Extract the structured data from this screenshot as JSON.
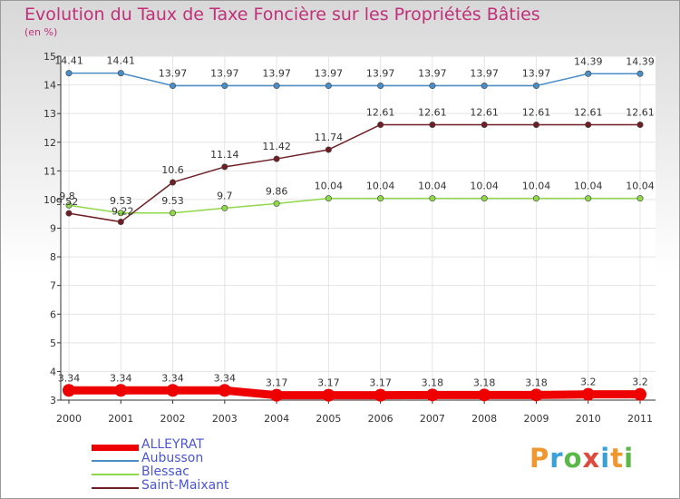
{
  "chart_data": {
    "type": "line",
    "title": "Evolution du Taux de Taxe Foncière sur les Propriétés Bâties",
    "ylabel": "(en %)",
    "categories": [
      "2000",
      "2001",
      "2002",
      "2003",
      "2004",
      "2005",
      "2006",
      "2007",
      "2008",
      "2009",
      "2010",
      "2011"
    ],
    "yticks": [
      "3",
      "4",
      "5",
      "6",
      "7",
      "8",
      "9",
      "10",
      "11",
      "12",
      "13",
      "14",
      "15"
    ],
    "ylim": [
      3,
      15
    ],
    "series": [
      {
        "name": "ALLEYRAT",
        "color": "#ee0000",
        "values": [
          3.34,
          3.34,
          3.34,
          3.34,
          3.17,
          3.17,
          3.17,
          3.18,
          3.18,
          3.18,
          3.2,
          3.2
        ],
        "labels": [
          "3.34",
          "3.34",
          "3.34",
          "3.34",
          "3.17",
          "3.17",
          "3.17",
          "3.18",
          "3.18",
          "3.18",
          "3.2",
          "3.2"
        ]
      },
      {
        "name": "Aubusson",
        "color": "#4a8ec8",
        "values": [
          14.41,
          14.41,
          13.97,
          13.97,
          13.97,
          13.97,
          13.97,
          13.97,
          13.97,
          13.97,
          14.39,
          14.39
        ],
        "labels": [
          "14.41",
          "14.41",
          "13.97",
          "13.97",
          "13.97",
          "13.97",
          "13.97",
          "13.97",
          "13.97",
          "13.97",
          "14.39",
          "14.39"
        ]
      },
      {
        "name": "Blessac",
        "color": "#8ed84a",
        "values": [
          9.8,
          9.53,
          9.53,
          9.7,
          9.86,
          10.04,
          10.04,
          10.04,
          10.04,
          10.04,
          10.04,
          10.04
        ],
        "labels": [
          "9.8",
          "9.53",
          "9.53",
          "9.7",
          "9.86",
          "10.04",
          "10.04",
          "10.04",
          "10.04",
          "10.04",
          "10.04",
          "10.04"
        ]
      },
      {
        "name": "Saint-Maixant",
        "color": "#6e1e24",
        "values": [
          9.52,
          9.22,
          10.6,
          11.14,
          11.42,
          11.74,
          12.61,
          12.61,
          12.61,
          12.61,
          12.61,
          12.61
        ],
        "labels": [
          "9.52",
          "9.22",
          "10.6",
          "11.14",
          "11.42",
          "11.74",
          "12.61",
          "12.61",
          "12.61",
          "12.61",
          "12.61",
          "12.61"
        ]
      }
    ]
  },
  "logo": {
    "p": "P",
    "r": "r",
    "o": "o",
    "x": "x",
    "i": "i",
    "t": "t",
    "i2": "i"
  }
}
